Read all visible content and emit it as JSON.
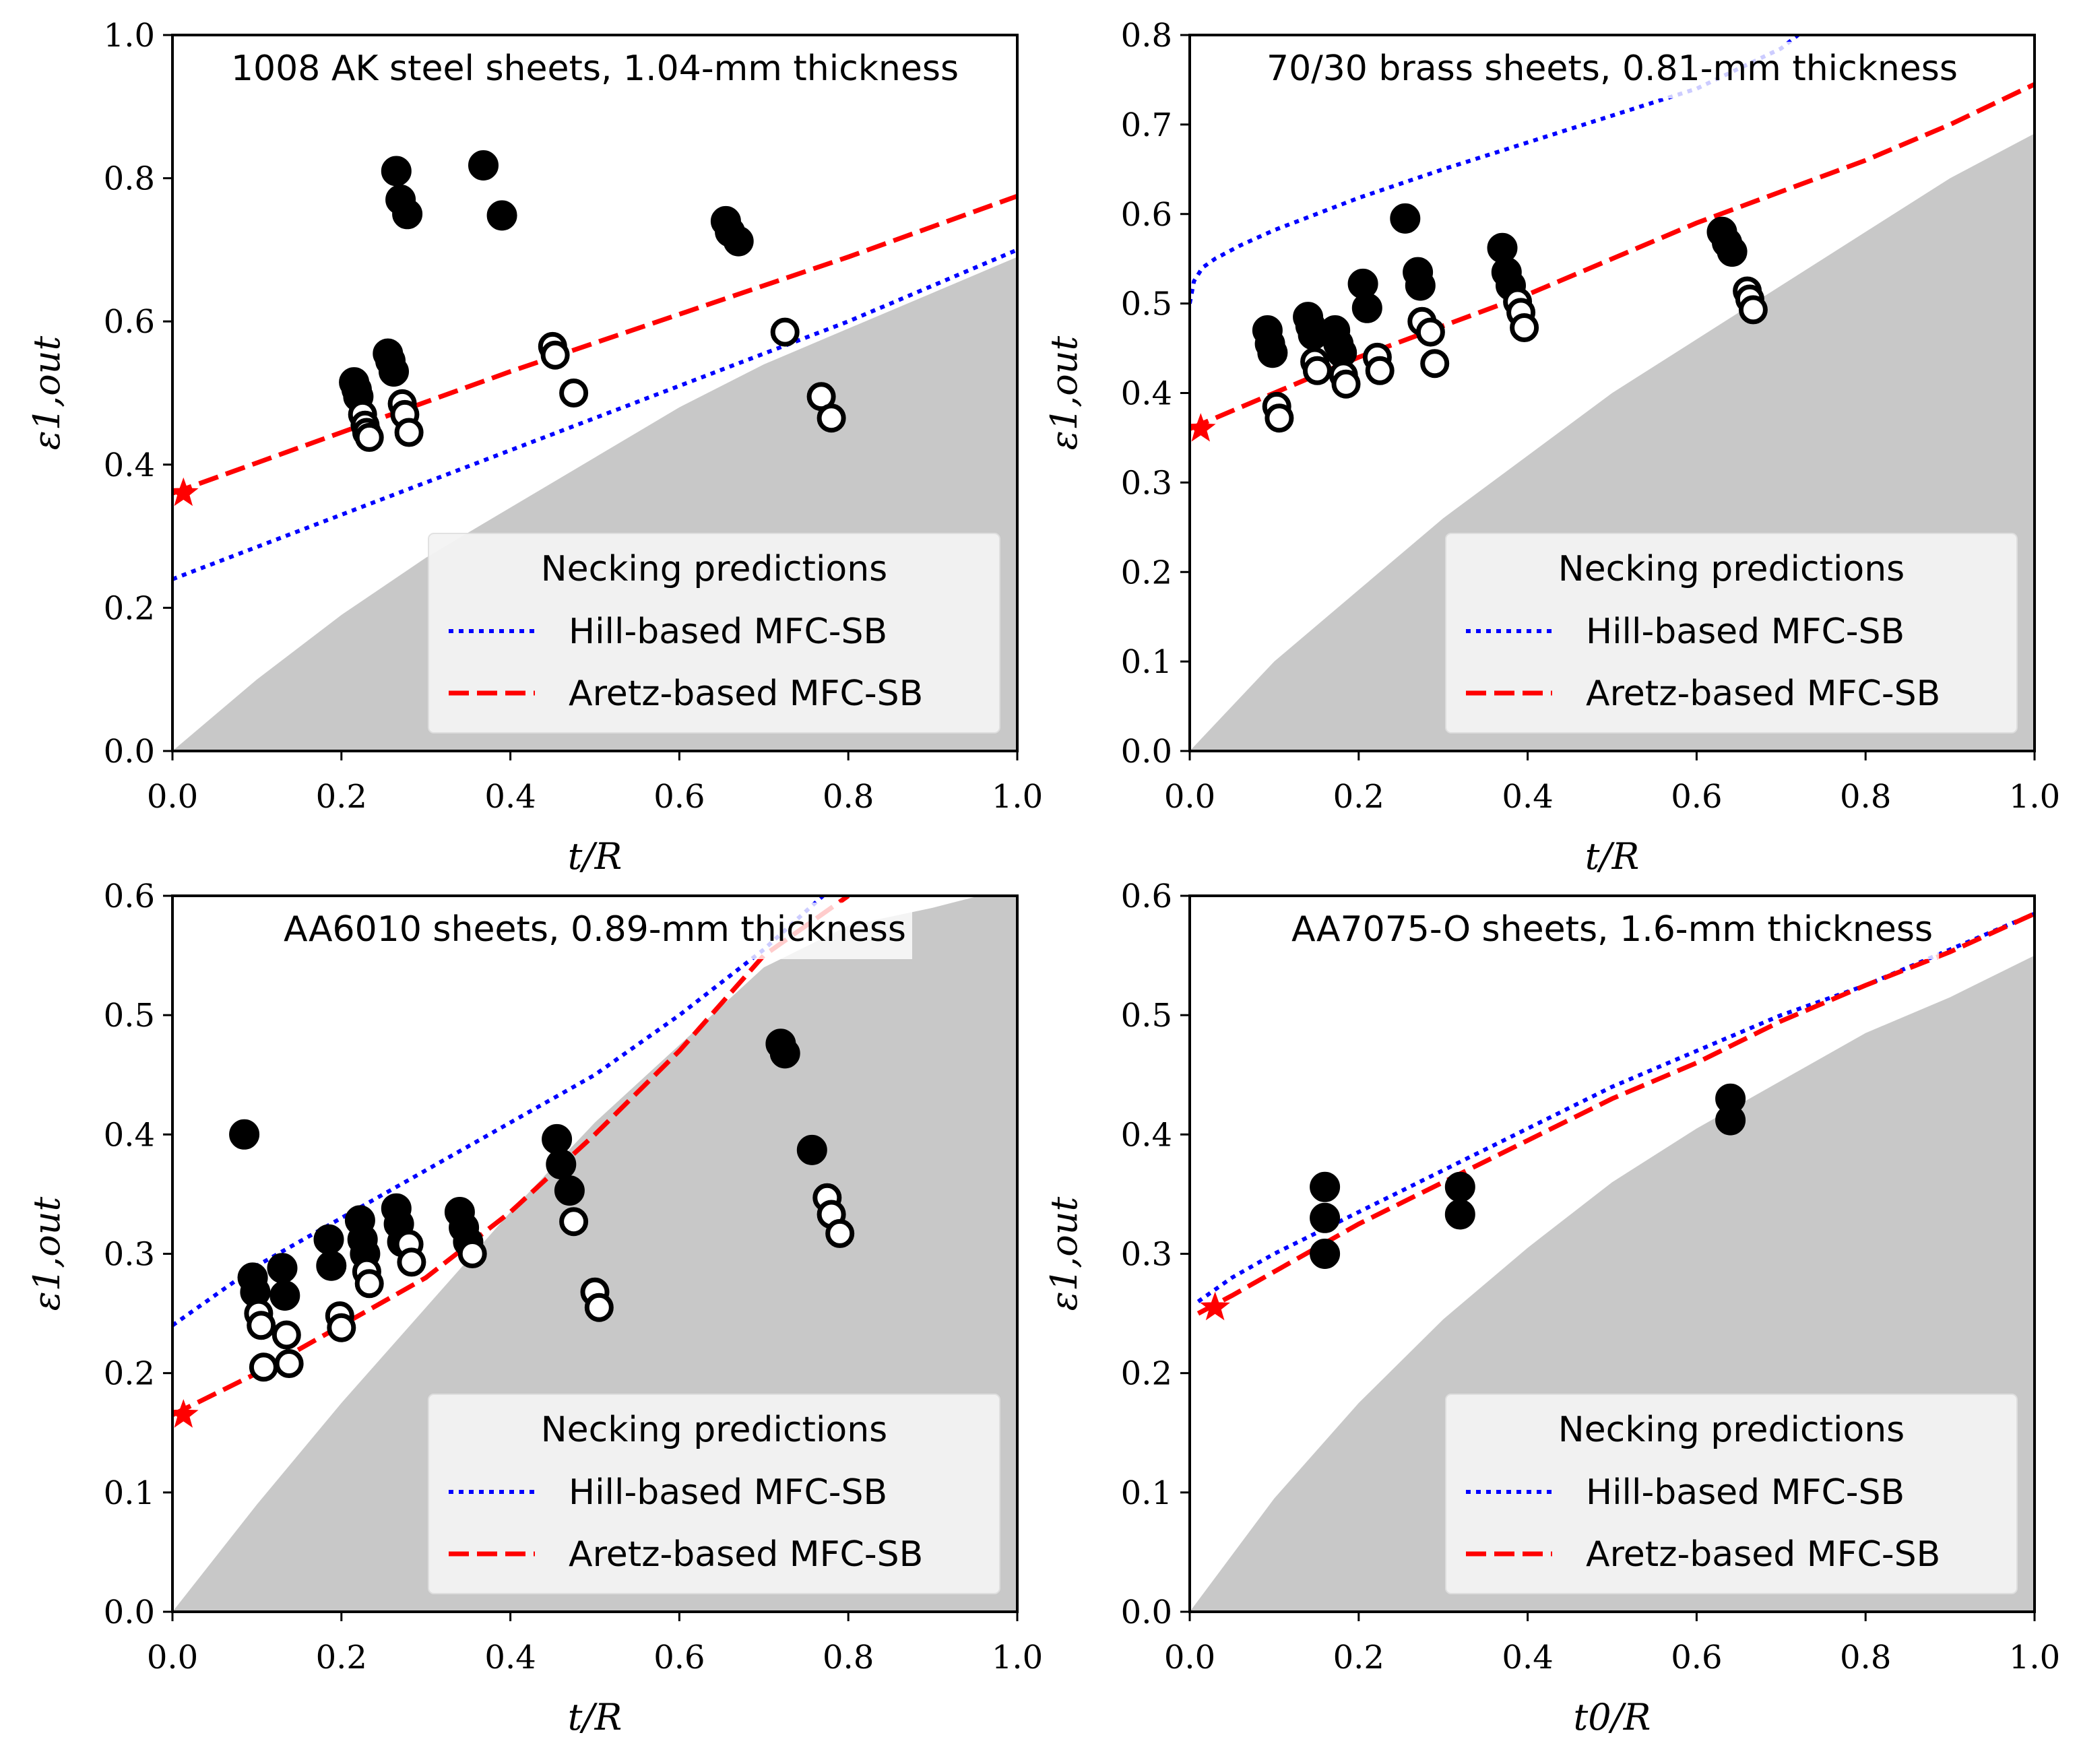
{
  "colors": {
    "hill": "#0000ff",
    "aretz": "#ff0000",
    "shade": "#c8c8c8",
    "filled": "#000000",
    "open_fill": "#ffffff",
    "legend_bg": "#f4f4f4"
  },
  "chart_data": [
    {
      "type": "scatter",
      "panel": "top-left",
      "title": "1008 AK steel sheets, 1.04-mm thickness",
      "xlabel": "t/R",
      "ylabel": "ε1,out",
      "xlim": [
        0,
        1
      ],
      "ylim": [
        0,
        1
      ],
      "xticks": [
        0.0,
        0.2,
        0.4,
        0.6,
        0.8,
        1.0
      ],
      "xtick_labels": [
        "0.0",
        "0.2",
        "0.4",
        "0.6",
        "0.8",
        "1.0"
      ],
      "yticks": [
        0.0,
        0.2,
        0.4,
        0.6,
        0.8,
        1.0
      ],
      "ytick_labels": [
        "0.0",
        "0.2",
        "0.4",
        "0.6",
        "0.8",
        "1.0"
      ],
      "legend": {
        "title": "Necking predictions",
        "location": "lower right",
        "entries": [
          "Hill-based MFC-SB",
          "Aretz-based MFC-SB"
        ]
      },
      "shaded_region": {
        "description": "bending strain limit",
        "x": [
          0,
          0.1,
          0.2,
          0.3,
          0.4,
          0.5,
          0.6,
          0.7,
          0.8,
          0.9,
          1.0
        ],
        "y": [
          0,
          0.1,
          0.19,
          0.27,
          0.34,
          0.41,
          0.48,
          0.54,
          0.59,
          0.64,
          0.69
        ]
      },
      "series": [
        {
          "name": "Hill-based MFC-SB",
          "style": "dotted",
          "x": [
            0,
            0.2,
            0.4,
            0.6,
            0.8,
            1.0
          ],
          "y": [
            0.24,
            0.33,
            0.42,
            0.51,
            0.6,
            0.7
          ]
        },
        {
          "name": "Aretz-based MFC-SB",
          "style": "dashed",
          "x": [
            0,
            0.2,
            0.4,
            0.6,
            0.8,
            1.0
          ],
          "y": [
            0.36,
            0.445,
            0.53,
            0.61,
            0.69,
            0.775
          ]
        },
        {
          "name": "Aretz star",
          "style": "star",
          "x": [
            0.013
          ],
          "y": [
            0.36
          ]
        },
        {
          "name": "Necked (filled)",
          "style": "filled-circle",
          "x": [
            0.215,
            0.218,
            0.22,
            0.255,
            0.258,
            0.262,
            0.265,
            0.27,
            0.278,
            0.368,
            0.39,
            0.655,
            0.66,
            0.67
          ],
          "y": [
            0.515,
            0.505,
            0.495,
            0.555,
            0.545,
            0.53,
            0.81,
            0.77,
            0.75,
            0.818,
            0.748,
            0.74,
            0.725,
            0.712
          ]
        },
        {
          "name": "Safe (open)",
          "style": "open-circle",
          "x": [
            0.225,
            0.228,
            0.23,
            0.233,
            0.272,
            0.275,
            0.28,
            0.45,
            0.453,
            0.475,
            0.725,
            0.768,
            0.78
          ],
          "y": [
            0.47,
            0.455,
            0.445,
            0.438,
            0.485,
            0.47,
            0.445,
            0.565,
            0.553,
            0.5,
            0.585,
            0.495,
            0.465
          ]
        }
      ]
    },
    {
      "type": "scatter",
      "panel": "top-right",
      "title": "70/30 brass sheets, 0.81-mm thickness",
      "xlabel": "t/R",
      "ylabel": "ε1,out",
      "xlim": [
        0,
        1
      ],
      "ylim": [
        0,
        0.8
      ],
      "xticks": [
        0.0,
        0.2,
        0.4,
        0.6,
        0.8,
        1.0
      ],
      "xtick_labels": [
        "0.0",
        "0.2",
        "0.4",
        "0.6",
        "0.8",
        "1.0"
      ],
      "yticks": [
        0.0,
        0.1,
        0.2,
        0.3,
        0.4,
        0.5,
        0.6,
        0.7,
        0.8
      ],
      "ytick_labels": [
        "0.0",
        "0.1",
        "0.2",
        "0.3",
        "0.4",
        "0.5",
        "0.6",
        "0.7",
        "0.8"
      ],
      "legend": {
        "title": "Necking predictions",
        "location": "lower right",
        "entries": [
          "Hill-based MFC-SB",
          "Aretz-based MFC-SB"
        ]
      },
      "shaded_region": {
        "description": "bending strain limit",
        "x": [
          0,
          0.1,
          0.2,
          0.3,
          0.4,
          0.5,
          0.6,
          0.7,
          0.8,
          0.9,
          1.0
        ],
        "y": [
          0,
          0.1,
          0.18,
          0.26,
          0.33,
          0.4,
          0.46,
          0.52,
          0.58,
          0.64,
          0.69
        ]
      },
      "series": [
        {
          "name": "Hill-based MFC-SB",
          "style": "dotted",
          "x": [
            0,
            0.005,
            0.015,
            0.03,
            0.06,
            0.1,
            0.15,
            0.2,
            0.3,
            0.4,
            0.5,
            0.6,
            0.7,
            0.72
          ],
          "y": [
            0.5,
            0.525,
            0.54,
            0.55,
            0.565,
            0.582,
            0.6,
            0.618,
            0.65,
            0.68,
            0.71,
            0.74,
            0.785,
            0.8
          ]
        },
        {
          "name": "Aretz-based MFC-SB",
          "style": "dashed",
          "x": [
            0,
            0.1,
            0.2,
            0.3,
            0.4,
            0.5,
            0.6,
            0.7,
            0.8,
            0.9,
            1.0
          ],
          "y": [
            0.36,
            0.4,
            0.44,
            0.475,
            0.51,
            0.55,
            0.59,
            0.625,
            0.66,
            0.7,
            0.745
          ]
        },
        {
          "name": "Aretz star",
          "style": "star",
          "x": [
            0.013
          ],
          "y": [
            0.36
          ]
        },
        {
          "name": "Necked (filled)",
          "style": "filled-circle",
          "x": [
            0.092,
            0.095,
            0.098,
            0.14,
            0.143,
            0.146,
            0.172,
            0.176,
            0.18,
            0.205,
            0.21,
            0.255,
            0.27,
            0.273,
            0.37,
            0.375,
            0.38,
            0.63,
            0.636,
            0.642
          ],
          "y": [
            0.47,
            0.455,
            0.445,
            0.485,
            0.475,
            0.465,
            0.47,
            0.455,
            0.445,
            0.522,
            0.495,
            0.595,
            0.535,
            0.52,
            0.562,
            0.535,
            0.52,
            0.58,
            0.568,
            0.558
          ]
        },
        {
          "name": "Safe (open)",
          "style": "open-circle",
          "x": [
            0.103,
            0.106,
            0.148,
            0.151,
            0.182,
            0.185,
            0.222,
            0.225,
            0.275,
            0.285,
            0.29,
            0.388,
            0.392,
            0.396,
            0.66,
            0.663,
            0.667
          ],
          "y": [
            0.385,
            0.372,
            0.435,
            0.425,
            0.42,
            0.41,
            0.44,
            0.425,
            0.48,
            0.468,
            0.433,
            0.502,
            0.49,
            0.473,
            0.514,
            0.505,
            0.493
          ]
        }
      ]
    },
    {
      "type": "scatter",
      "panel": "bottom-left",
      "title": "AA6010 sheets, 0.89-mm thickness",
      "xlabel": "t/R",
      "ylabel": "ε1,out",
      "xlim": [
        0,
        1
      ],
      "ylim": [
        0,
        0.6
      ],
      "xticks": [
        0.0,
        0.2,
        0.4,
        0.6,
        0.8,
        1.0
      ],
      "xtick_labels": [
        "0.0",
        "0.2",
        "0.4",
        "0.6",
        "0.8",
        "1.0"
      ],
      "yticks": [
        0.0,
        0.1,
        0.2,
        0.3,
        0.4,
        0.5,
        0.6
      ],
      "ytick_labels": [
        "0.0",
        "0.1",
        "0.2",
        "0.3",
        "0.4",
        "0.5",
        "0.6"
      ],
      "legend": {
        "title": "Necking predictions",
        "location": "lower right",
        "entries": [
          "Hill-based MFC-SB",
          "Aretz-based MFC-SB"
        ]
      },
      "shaded_region": {
        "description": "bending strain limit",
        "x": [
          0,
          0.1,
          0.2,
          0.3,
          0.4,
          0.5,
          0.6,
          0.7,
          0.8,
          0.9,
          0.955,
          1.0
        ],
        "y": [
          0,
          0.09,
          0.175,
          0.255,
          0.335,
          0.41,
          0.475,
          0.54,
          0.575,
          0.59,
          0.6,
          0.6
        ]
      },
      "series": [
        {
          "name": "Hill-based MFC-SB",
          "style": "dotted",
          "x": [
            0,
            0.05,
            0.1,
            0.2,
            0.3,
            0.4,
            0.5,
            0.6,
            0.7,
            0.77
          ],
          "y": [
            0.24,
            0.265,
            0.29,
            0.33,
            0.37,
            0.41,
            0.45,
            0.5,
            0.555,
            0.6
          ]
        },
        {
          "name": "Aretz-based MFC-SB",
          "style": "dashed",
          "x": [
            0,
            0.1,
            0.2,
            0.3,
            0.4,
            0.5,
            0.6,
            0.7,
            0.8
          ],
          "y": [
            0.165,
            0.2,
            0.24,
            0.28,
            0.335,
            0.4,
            0.47,
            0.55,
            0.6
          ]
        },
        {
          "name": "Aretz star",
          "style": "star",
          "x": [
            0.013
          ],
          "y": [
            0.165
          ]
        },
        {
          "name": "Necked (filled)",
          "style": "filled-circle",
          "x": [
            0.085,
            0.095,
            0.098,
            0.13,
            0.133,
            0.185,
            0.188,
            0.222,
            0.225,
            0.228,
            0.265,
            0.268,
            0.272,
            0.34,
            0.345,
            0.35,
            0.455,
            0.46,
            0.47,
            0.72,
            0.725,
            0.757
          ],
          "y": [
            0.4,
            0.28,
            0.268,
            0.288,
            0.265,
            0.312,
            0.29,
            0.328,
            0.312,
            0.3,
            0.338,
            0.325,
            0.31,
            0.335,
            0.322,
            0.31,
            0.396,
            0.375,
            0.353,
            0.476,
            0.468,
            0.387
          ]
        },
        {
          "name": "Safe (open)",
          "style": "open-circle",
          "x": [
            0.102,
            0.105,
            0.108,
            0.135,
            0.138,
            0.198,
            0.2,
            0.23,
            0.233,
            0.28,
            0.283,
            0.355,
            0.475,
            0.5,
            0.505,
            0.775,
            0.78,
            0.79
          ],
          "y": [
            0.25,
            0.24,
            0.205,
            0.232,
            0.208,
            0.248,
            0.238,
            0.285,
            0.275,
            0.308,
            0.293,
            0.3,
            0.327,
            0.268,
            0.255,
            0.347,
            0.333,
            0.317
          ]
        }
      ]
    },
    {
      "type": "scatter",
      "panel": "bottom-right",
      "title": "AA7075-O sheets, 1.6-mm thickness",
      "xlabel": "t0/R",
      "ylabel": "ε1,out",
      "xlim": [
        0,
        1
      ],
      "ylim": [
        0,
        0.6
      ],
      "xticks": [
        0.0,
        0.2,
        0.4,
        0.6,
        0.8,
        1.0
      ],
      "xtick_labels": [
        "0.0",
        "0.2",
        "0.4",
        "0.6",
        "0.8",
        "1.0"
      ],
      "yticks": [
        0.0,
        0.1,
        0.2,
        0.3,
        0.4,
        0.5,
        0.6
      ],
      "ytick_labels": [
        "0.0",
        "0.1",
        "0.2",
        "0.3",
        "0.4",
        "0.5",
        "0.6"
      ],
      "legend": {
        "title": "Necking predictions",
        "location": "lower right",
        "entries": [
          "Hill-based MFC-SB",
          "Aretz-based MFC-SB"
        ]
      },
      "shaded_region": {
        "description": "bending strain limit",
        "x": [
          0,
          0.1,
          0.2,
          0.3,
          0.4,
          0.5,
          0.6,
          0.7,
          0.8,
          0.9,
          1.0
        ],
        "y": [
          0,
          0.095,
          0.175,
          0.245,
          0.305,
          0.36,
          0.405,
          0.445,
          0.485,
          0.515,
          0.55
        ]
      },
      "series": [
        {
          "name": "Hill-based MFC-SB",
          "style": "dotted",
          "x": [
            0.01,
            0.05,
            0.1,
            0.2,
            0.3,
            0.4,
            0.5,
            0.6,
            0.7,
            0.8,
            0.9,
            1.0
          ],
          "y": [
            0.26,
            0.28,
            0.3,
            0.335,
            0.37,
            0.405,
            0.44,
            0.47,
            0.5,
            0.525,
            0.555,
            0.585
          ]
        },
        {
          "name": "Aretz-based MFC-SB",
          "style": "dashed",
          "x": [
            0.01,
            0.05,
            0.1,
            0.2,
            0.3,
            0.4,
            0.5,
            0.6,
            0.7,
            0.8,
            0.9,
            1.0
          ],
          "y": [
            0.25,
            0.265,
            0.285,
            0.325,
            0.36,
            0.395,
            0.43,
            0.46,
            0.495,
            0.525,
            0.553,
            0.585
          ]
        },
        {
          "name": "Aretz star",
          "style": "star",
          "x": [
            0.03
          ],
          "y": [
            0.255
          ]
        },
        {
          "name": "Necked (filled)",
          "style": "filled-circle",
          "x": [
            0.16,
            0.16,
            0.16,
            0.32,
            0.32,
            0.64,
            0.64
          ],
          "y": [
            0.356,
            0.33,
            0.3,
            0.356,
            0.333,
            0.43,
            0.412
          ]
        },
        {
          "name": "Safe (open)",
          "style": "open-circle",
          "x": [],
          "y": []
        }
      ]
    }
  ]
}
